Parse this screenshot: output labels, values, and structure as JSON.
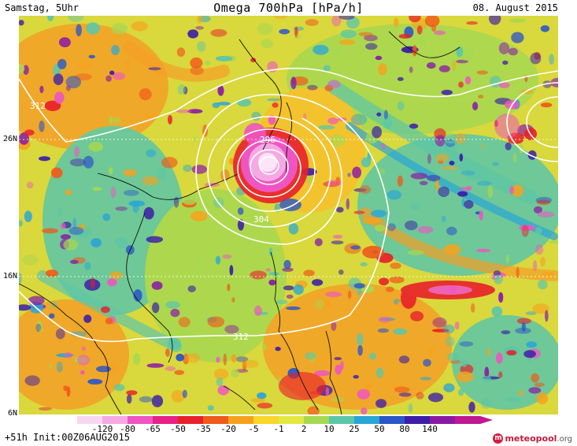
{
  "header": {
    "left": "Samstag, 5Uhr",
    "title": "Omega 700hPa [hPa/h]",
    "right": "08. August 2015"
  },
  "latitude_labels": [
    "26N",
    "16N",
    "6N"
  ],
  "contour_labels": [
    "312",
    "296",
    "304",
    "312"
  ],
  "colorbar": {
    "ticks": [
      "-120",
      "-80",
      "-65",
      "-50",
      "-35",
      "-20",
      "-5",
      "-1",
      "2",
      "10",
      "25",
      "50",
      "80",
      "140"
    ],
    "colors": [
      "#f7d8f0",
      "#f5a9e3",
      "#ef55c2",
      "#e8208a",
      "#e8202a",
      "#f05a1a",
      "#f7a21c",
      "#f9d62a",
      "#e4e840",
      "#a6d850",
      "#5cc6a8",
      "#2aa6d6",
      "#2b56c8",
      "#3b1ea8",
      "#8a1aa6",
      "#c01890"
    ]
  },
  "footer": {
    "left": "+51h Init:00Z06AUG2015",
    "logo_text": "meteopool",
    "logo_suffix": ".org"
  }
}
